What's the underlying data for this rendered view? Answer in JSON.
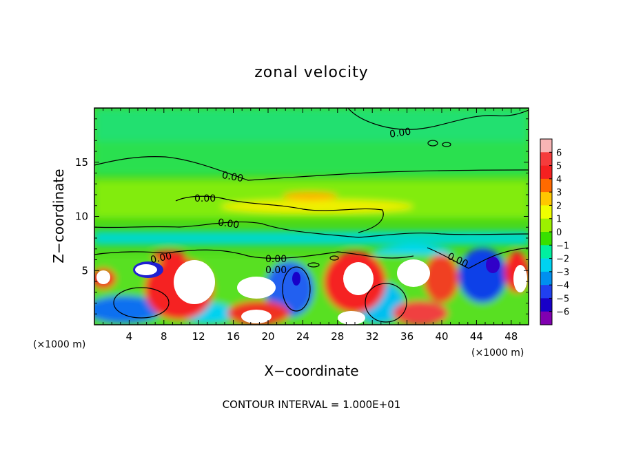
{
  "chart_data": {
    "type": "heatmap",
    "title": "zonal velocity",
    "xlabel": "X−coordinate",
    "ylabel": "Z−coordinate",
    "x_unit": "(×1000 m)",
    "x_ticks": [
      4,
      8,
      12,
      16,
      20,
      24,
      28,
      32,
      36,
      40,
      44,
      48
    ],
    "y_ticks": [
      5,
      10,
      15
    ],
    "xlim": [
      0,
      50
    ],
    "ylim": [
      0,
      20
    ],
    "footer": "CONTOUR INTERVAL = 1.000E+01",
    "colorbar": {
      "ticks": [
        6,
        5,
        4,
        3,
        2,
        1,
        0,
        -1,
        -2,
        -3,
        -4,
        -5,
        -6
      ],
      "tick_labels": [
        "6",
        "5",
        "4",
        "3",
        "2",
        "1",
        "0",
        "−1",
        "−2",
        "−3",
        "−4",
        "−5",
        "−6"
      ],
      "colors": [
        "#f7b5b5",
        "#f53c3c",
        "#f52020",
        "#ff6a00",
        "#ffc800",
        "#f0ff00",
        "#9cf000",
        "#38e000",
        "#00f0a0",
        "#00d2f0",
        "#0090f0",
        "#2040f0",
        "#1800c8",
        "#8000b0"
      ],
      "range": [
        -6,
        6
      ]
    },
    "contour_labels": [
      "0.00",
      "0.00",
      "0.00",
      "0.00",
      "0.00",
      "0.00",
      "0.00",
      "0.00"
    ]
  }
}
